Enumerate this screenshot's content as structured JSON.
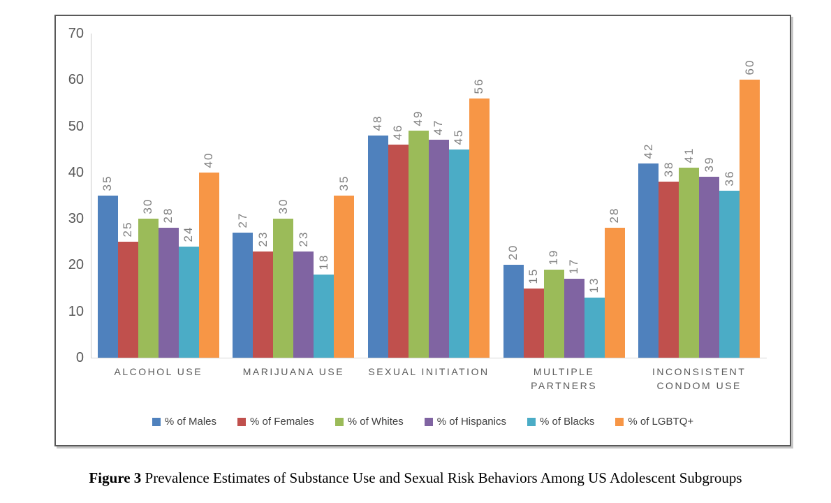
{
  "figure": {
    "caption_label": "Figure 3",
    "caption_text": " Prevalence Estimates of Substance Use and Sexual Risk Behaviors Among US Adolescent Subgroups"
  },
  "chart_data": {
    "type": "bar",
    "title": "",
    "xlabel": "",
    "ylabel": "",
    "categories": [
      "ALCOHOL USE",
      "MARIJUANA USE",
      "SEXUAL INITIATION",
      "MULTIPLE PARTNERS",
      "INCONSISTENT CONDOM USE"
    ],
    "series": [
      {
        "name": "% of Males",
        "color": "#4F81BD",
        "values": [
          35,
          27,
          48,
          20,
          42
        ]
      },
      {
        "name": "% of Females",
        "color": "#C0504D",
        "values": [
          25,
          23,
          46,
          15,
          38
        ]
      },
      {
        "name": "% of Whites",
        "color": "#9BBB59",
        "values": [
          30,
          30,
          49,
          19,
          41
        ]
      },
      {
        "name": "% of Hispanics",
        "color": "#8064A2",
        "values": [
          28,
          23,
          47,
          17,
          39
        ]
      },
      {
        "name": "% of Blacks",
        "color": "#4BACC6",
        "values": [
          24,
          18,
          45,
          13,
          36
        ]
      },
      {
        "name": "% of LGBTQ+",
        "color": "#F79646",
        "values": [
          40,
          35,
          56,
          28,
          60
        ]
      }
    ],
    "y_axis": {
      "min": 0,
      "max": 70,
      "step": 10,
      "ticks": [
        0,
        10,
        20,
        30,
        40,
        50,
        60,
        70
      ]
    },
    "grid": false,
    "data_labels": true,
    "data_label_rotation": -90,
    "legend_position": "bottom"
  },
  "style_colors": {
    "axis_text": "#595959",
    "data_label_text": "#7F7F7F",
    "category_text": "#595959",
    "legend_text": "#404040",
    "axis_line": "#C9C9C9",
    "chart_border": "#595959"
  }
}
